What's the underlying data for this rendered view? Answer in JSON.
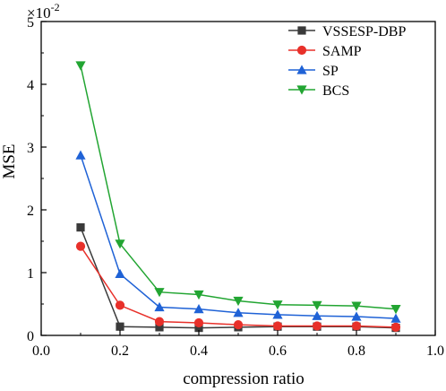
{
  "chart_data": {
    "type": "line",
    "title": "",
    "xlabel": "compression ratio",
    "ylabel": "MSE",
    "y_multiplier_base": "×10",
    "y_multiplier_exp": "-2",
    "xlim": [
      0.0,
      1.0
    ],
    "ylim": [
      0,
      5
    ],
    "xticks": [
      "0.0",
      "0.2",
      "0.4",
      "0.6",
      "0.8",
      "1.0"
    ],
    "yticks": [
      "0",
      "1",
      "2",
      "3",
      "4",
      "5"
    ],
    "grid": false,
    "legend_position": "top-right",
    "x": [
      0.1,
      0.2,
      0.3,
      0.4,
      0.5,
      0.6,
      0.7,
      0.8,
      0.9
    ],
    "series": [
      {
        "name": "VSSESP-DBP",
        "color": "#3a3a3a",
        "marker": "square",
        "values": [
          1.72,
          0.14,
          0.13,
          0.12,
          0.13,
          0.14,
          0.14,
          0.14,
          0.12
        ]
      },
      {
        "name": "SAMP",
        "color": "#e8302a",
        "marker": "circle",
        "values": [
          1.42,
          0.48,
          0.22,
          0.2,
          0.17,
          0.15,
          0.15,
          0.15,
          0.13
        ]
      },
      {
        "name": "SP",
        "color": "#1f62d6",
        "marker": "triangle-up",
        "values": [
          2.87,
          0.98,
          0.45,
          0.42,
          0.36,
          0.33,
          0.31,
          0.3,
          0.27
        ]
      },
      {
        "name": "BCS",
        "color": "#22a532",
        "marker": "triangle-down",
        "values": [
          4.3,
          1.46,
          0.69,
          0.65,
          0.55,
          0.49,
          0.48,
          0.47,
          0.42
        ]
      }
    ]
  }
}
